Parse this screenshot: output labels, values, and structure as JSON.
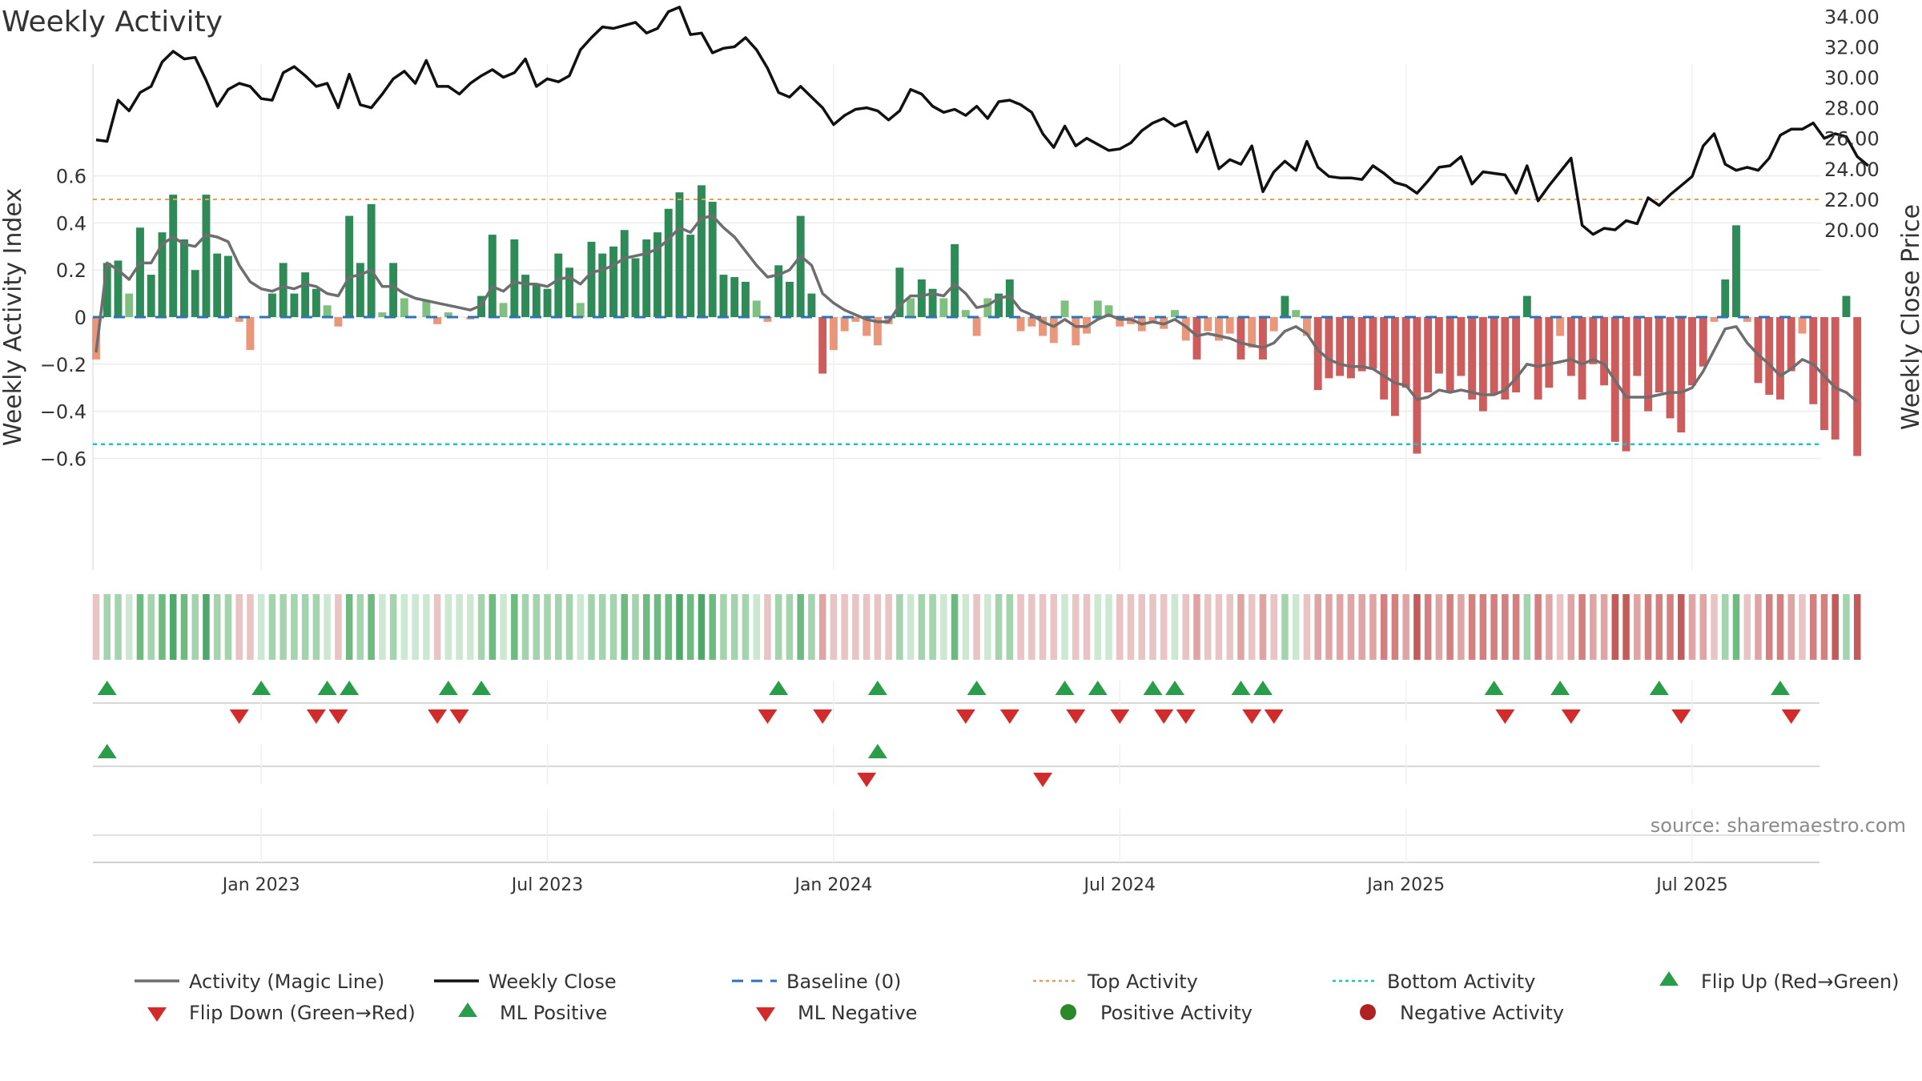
{
  "chart_data": {
    "type": "bar",
    "title": "Weekly Activity",
    "ylabel_left": "Weekly Activity Index",
    "ylabel_right": "Weekly Close Price",
    "source": "source: sharemaestro.com",
    "y_left": {
      "min": -0.63,
      "max": 0.63,
      "ticks": [
        0.6,
        0.4,
        0.2,
        0,
        -0.2,
        -0.4,
        -0.6
      ],
      "tick_labels": [
        "0.6",
        "0.4",
        "0.2",
        "0",
        "−0.2",
        "−0.4",
        "−0.6"
      ]
    },
    "y_right": {
      "min": 19.4,
      "max": 35.4,
      "ticks": [
        34,
        32,
        30,
        28,
        26,
        24,
        22,
        20
      ],
      "tick_labels": [
        "34.00",
        "32.00",
        "30.00",
        "28.00",
        "26.00",
        "24.00",
        "22.00",
        "20.00"
      ]
    },
    "x_axis": {
      "start_week": 0,
      "end_week": 156,
      "ticks": [
        {
          "week": 15,
          "label": "Jan 2023"
        },
        {
          "week": 41,
          "label": "Jul 2023"
        },
        {
          "week": 67,
          "label": "Jan 2024"
        },
        {
          "week": 93,
          "label": "Jul 2024"
        },
        {
          "week": 119,
          "label": "Jan 2025"
        },
        {
          "week": 145,
          "label": "Jul 2025"
        }
      ]
    },
    "reference_lines": {
      "baseline": 0,
      "top_activity": 0.5,
      "bottom_activity": -0.54
    },
    "activity": [
      -0.18,
      0.23,
      0.24,
      0.1,
      0.38,
      0.18,
      0.36,
      0.52,
      0.33,
      0.2,
      0.52,
      0.27,
      0.26,
      -0.02,
      -0.14,
      0,
      0.1,
      0.23,
      0.1,
      0.19,
      0.12,
      0.05,
      -0.04,
      0.43,
      0.23,
      0.48,
      0.02,
      0.23,
      0.08,
      0,
      0.07,
      -0.03,
      0.02,
      0,
      -0.01,
      0.09,
      0.35,
      0.06,
      0.33,
      0.18,
      0.14,
      0.12,
      0.27,
      0.21,
      0.06,
      0.32,
      0.27,
      0.3,
      0.37,
      0.25,
      0.33,
      0.36,
      0.46,
      0.53,
      0.35,
      0.56,
      0.49,
      0.18,
      0.17,
      0.15,
      0.07,
      -0.02,
      0.22,
      0.15,
      0.43,
      0.1,
      -0.24,
      -0.14,
      -0.06,
      -0.02,
      -0.08,
      -0.12,
      -0.03,
      0.21,
      0.08,
      0.16,
      0.12,
      0.08,
      0.31,
      0.03,
      -0.08,
      0.08,
      0.1,
      0.16,
      -0.06,
      -0.04,
      -0.08,
      -0.11,
      0.07,
      -0.12,
      -0.07,
      0.07,
      0.05,
      -0.04,
      -0.03,
      -0.06,
      -0.02,
      -0.05,
      0.03,
      -0.1,
      -0.18,
      -0.06,
      -0.1,
      -0.07,
      -0.18,
      -0.13,
      -0.18,
      -0.06,
      0.09,
      0.03,
      -0.08,
      -0.31,
      -0.26,
      -0.25,
      -0.26,
      -0.23,
      -0.22,
      -0.35,
      -0.42,
      -0.3,
      -0.58,
      -0.32,
      -0.24,
      -0.32,
      -0.25,
      -0.35,
      -0.4,
      -0.33,
      -0.35,
      -0.32,
      0.09,
      -0.35,
      -0.3,
      -0.08,
      -0.25,
      -0.35,
      -0.2,
      -0.29,
      -0.53,
      -0.57,
      -0.25,
      -0.4,
      -0.32,
      -0.43,
      -0.49,
      -0.29,
      -0.21,
      -0.02,
      0.16,
      0.39,
      -0.02,
      -0.28,
      -0.33,
      -0.35,
      -0.23,
      -0.07,
      -0.37,
      -0.48,
      -0.52,
      0.09,
      -0.59
    ],
    "magic_line": [
      -0.15,
      0.23,
      0.2,
      0.16,
      0.23,
      0.23,
      0.31,
      0.34,
      0.31,
      0.3,
      0.35,
      0.34,
      0.32,
      0.22,
      0.15,
      0.12,
      0.11,
      0.13,
      0.12,
      0.14,
      0.13,
      0.1,
      0.09,
      0.17,
      0.18,
      0.2,
      0.13,
      0.13,
      0.1,
      0.08,
      0.07,
      0.06,
      0.05,
      0.04,
      0.03,
      0.05,
      0.13,
      0.11,
      0.15,
      0.14,
      0.14,
      0.13,
      0.16,
      0.17,
      0.14,
      0.19,
      0.2,
      0.22,
      0.25,
      0.26,
      0.27,
      0.29,
      0.33,
      0.38,
      0.36,
      0.42,
      0.43,
      0.38,
      0.34,
      0.28,
      0.22,
      0.17,
      0.18,
      0.2,
      0.26,
      0.22,
      0.1,
      0.06,
      0.03,
      0.01,
      -0.01,
      -0.02,
      -0.02,
      0.05,
      0.09,
      0.09,
      0.1,
      0.09,
      0.14,
      0.1,
      0.04,
      0.05,
      0.08,
      0.09,
      0.03,
      0.01,
      -0.02,
      -0.04,
      -0.01,
      -0.04,
      -0.04,
      -0.01,
      0.01,
      -0.01,
      -0.01,
      -0.03,
      -0.02,
      -0.03,
      -0.01,
      -0.04,
      -0.08,
      -0.07,
      -0.08,
      -0.09,
      -0.11,
      -0.12,
      -0.13,
      -0.11,
      -0.06,
      -0.04,
      -0.07,
      -0.14,
      -0.18,
      -0.2,
      -0.21,
      -0.21,
      -0.22,
      -0.25,
      -0.28,
      -0.29,
      -0.35,
      -0.34,
      -0.31,
      -0.32,
      -0.31,
      -0.32,
      -0.33,
      -0.33,
      -0.31,
      -0.26,
      -0.2,
      -0.21,
      -0.2,
      -0.19,
      -0.18,
      -0.2,
      -0.18,
      -0.2,
      -0.27,
      -0.34,
      -0.34,
      -0.34,
      -0.33,
      -0.32,
      -0.32,
      -0.3,
      -0.23,
      -0.14,
      -0.05,
      -0.04,
      -0.11,
      -0.16,
      -0.2,
      -0.25,
      -0.22,
      -0.18,
      -0.2,
      -0.25,
      -0.3,
      -0.32,
      -0.36
    ],
    "weekly_close": [
      25.9,
      25.8,
      28.5,
      27.8,
      29.0,
      29.4,
      31.0,
      31.7,
      31.2,
      31.3,
      29.8,
      28.1,
      29.2,
      29.6,
      29.4,
      28.6,
      28.5,
      30.3,
      30.7,
      30.1,
      29.4,
      29.6,
      28.0,
      30.2,
      28.2,
      28.0,
      28.9,
      29.9,
      30.4,
      29.6,
      31.1,
      29.4,
      29.4,
      28.9,
      29.6,
      30.1,
      30.5,
      30.0,
      30.3,
      31.2,
      29.4,
      29.9,
      29.7,
      30.1,
      31.8,
      32.6,
      33.3,
      33.2,
      33.4,
      33.6,
      32.9,
      33.2,
      34.3,
      34.6,
      32.8,
      32.9,
      31.6,
      31.9,
      32.0,
      32.6,
      31.8,
      30.6,
      29.0,
      28.7,
      29.4,
      28.7,
      28.0,
      26.9,
      27.5,
      27.9,
      28.0,
      27.8,
      27.2,
      27.8,
      29.2,
      28.9,
      28.1,
      27.7,
      27.9,
      27.5,
      28.1,
      27.3,
      28.4,
      28.5,
      28.2,
      27.7,
      26.3,
      25.4,
      26.8,
      25.5,
      26.0,
      25.6,
      25.2,
      25.3,
      25.7,
      26.5,
      27.0,
      27.3,
      26.8,
      27.1,
      25.1,
      26.4,
      24.0,
      24.6,
      24.3,
      25.5,
      22.5,
      23.8,
      24.5,
      23.9,
      25.8,
      24.1,
      23.5,
      23.4,
      23.4,
      23.3,
      24.2,
      23.7,
      23.1,
      22.9,
      22.4,
      23.2,
      24.1,
      24.2,
      24.8,
      23.0,
      23.8,
      23.7,
      23.6,
      22.4,
      24.2,
      21.9,
      22.9,
      23.8,
      24.7,
      20.3,
      19.7,
      20.1,
      20.0,
      20.6,
      20.4,
      22.1,
      21.6,
      22.3,
      22.9,
      23.5,
      25.5,
      26.3,
      24.3,
      23.9,
      24.1,
      23.9,
      24.7,
      26.2,
      26.6,
      26.6,
      27.0,
      26.0,
      26.3,
      26.1,
      24.8,
      24.2
    ],
    "heatmap_levels": [
      -1,
      2,
      2,
      1,
      3,
      2,
      3,
      4,
      3,
      2,
      4,
      2,
      2,
      -1,
      -1,
      1,
      2,
      2,
      2,
      2,
      2,
      1,
      -1,
      3,
      2,
      3,
      1,
      2,
      1,
      1,
      1,
      -1,
      1,
      1,
      1,
      2,
      3,
      1,
      3,
      2,
      2,
      2,
      2,
      2,
      1,
      2,
      2,
      2,
      3,
      2,
      3,
      3,
      3,
      4,
      3,
      4,
      3,
      2,
      2,
      2,
      1,
      -1,
      2,
      2,
      3,
      2,
      -2,
      -1,
      -1,
      -1,
      -1,
      -1,
      -1,
      2,
      1,
      2,
      2,
      1,
      3,
      1,
      -1,
      1,
      2,
      2,
      -1,
      -1,
      -1,
      -1,
      1,
      -1,
      -1,
      1,
      1,
      -1,
      -1,
      -1,
      -1,
      -1,
      1,
      -1,
      -2,
      -1,
      -1,
      -1,
      -2,
      -1,
      -2,
      -1,
      2,
      1,
      -1,
      -2,
      -2,
      -2,
      -2,
      -2,
      -2,
      -3,
      -3,
      -2,
      -4,
      -3,
      -2,
      -3,
      -2,
      -3,
      -3,
      -3,
      -3,
      -3,
      2,
      -3,
      -2,
      -1,
      -2,
      -3,
      -2,
      -2,
      -4,
      -4,
      -2,
      -3,
      -3,
      -3,
      -4,
      -2,
      -2,
      -1,
      2,
      3,
      -1,
      -2,
      -3,
      -3,
      -2,
      -1,
      -3,
      -3,
      -4,
      2,
      -4
    ],
    "flip_up_weeks": [
      1,
      15,
      21,
      23,
      32,
      35,
      62,
      71,
      80,
      88,
      91,
      96,
      98,
      104,
      106,
      127,
      133,
      142,
      153
    ],
    "flip_down_weeks": [
      13,
      20,
      22,
      31,
      33,
      61,
      66,
      79,
      83,
      89,
      93,
      97,
      99,
      105,
      107,
      128,
      134,
      144,
      154
    ],
    "ml_positive_weeks": [
      1,
      71
    ],
    "ml_negative_weeks": [
      70,
      86
    ],
    "legend": [
      {
        "label": "Activity (Magic Line)",
        "kind": "line",
        "color": "#6e6e6e"
      },
      {
        "label": "Weekly Close",
        "kind": "line",
        "color": "#111111"
      },
      {
        "label": "Baseline (0)",
        "kind": "dash",
        "color": "#2e73b8"
      },
      {
        "label": "Top Activity",
        "kind": "dot",
        "color": "#e0a060"
      },
      {
        "label": "Bottom Activity",
        "kind": "dot",
        "color": "#20c0c8"
      },
      {
        "label": "Flip Up (Red→Green)",
        "kind": "tri-up",
        "color": "#2a9d4a"
      },
      {
        "label": "Flip Down (Green→Red)",
        "kind": "tri-down",
        "color": "#d12b2b"
      },
      {
        "label": "ML Positive",
        "kind": "tri-up",
        "color": "#2a9d4a"
      },
      {
        "label": "ML Negative",
        "kind": "tri-down",
        "color": "#d12b2b"
      },
      {
        "label": "Positive Activity",
        "kind": "circle",
        "color": "#2a8a2a"
      },
      {
        "label": "Negative Activity",
        "kind": "circle",
        "color": "#b02222"
      }
    ],
    "colors": {
      "pos_strong": "#2e8b57",
      "pos_weak": "#7fbf7f",
      "neg_strong": "#cd5c5c",
      "neg_weak": "#e9967a",
      "magic_line": "#6e6e6e",
      "close_line": "#111111",
      "baseline": "#2e73b8",
      "top_line": "#e0a060",
      "bottom_line": "#20c0c8",
      "up_marker": "#2a9d4a",
      "down_marker": "#d12b2b"
    }
  }
}
